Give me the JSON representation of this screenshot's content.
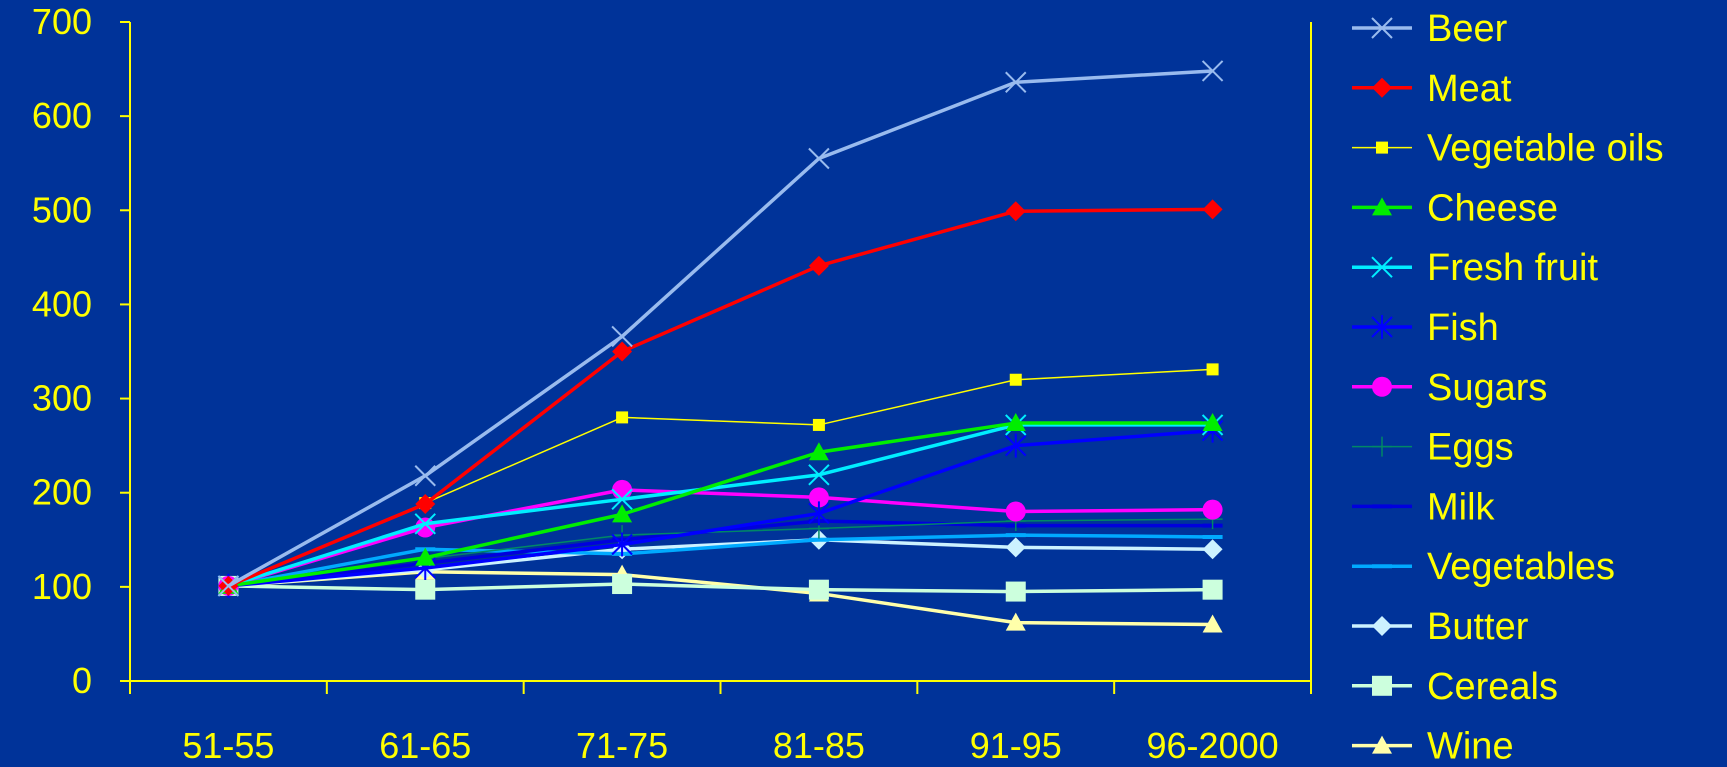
{
  "chart_data": {
    "type": "line",
    "title": "",
    "xlabel": "",
    "ylabel": "",
    "categories": [
      "51-55",
      "61-65",
      "71-75",
      "81-85",
      "91-95",
      "96-2000"
    ],
    "y_ticks": [
      "0",
      "100",
      "200",
      "300",
      "400",
      "500",
      "600",
      "700"
    ],
    "ylim": [
      0,
      700
    ],
    "grid": false,
    "legend_position": "right",
    "colors": {
      "background": "#003399",
      "axis": "#ffff00",
      "text": "#ffff00"
    },
    "series": [
      {
        "name": "Beer",
        "color": "#99bbee",
        "marker": "x",
        "width": 3.5,
        "values": [
          101,
          218,
          366,
          555,
          636,
          648
        ]
      },
      {
        "name": "Meat",
        "color": "#ff0000",
        "marker": "diamond",
        "width": 3.5,
        "values": [
          101,
          188,
          350,
          441,
          499,
          501
        ]
      },
      {
        "name": "Vegetable oils",
        "color": "#ffff00",
        "marker": "square-small",
        "width": 1.5,
        "values": [
          101,
          189,
          280,
          272,
          320,
          331
        ]
      },
      {
        "name": "Cheese",
        "color": "#00ee00",
        "marker": "triangle",
        "width": 3.5,
        "values": [
          101,
          131,
          177,
          243,
          274,
          274
        ]
      },
      {
        "name": "Fresh fruit",
        "color": "#00eeff",
        "marker": "x",
        "width": 3.5,
        "values": [
          101,
          167,
          193,
          219,
          272,
          272
        ]
      },
      {
        "name": "Fish",
        "color": "#0000ff",
        "marker": "star",
        "width": 3.5,
        "values": [
          101,
          120,
          145,
          178,
          250,
          266
        ]
      },
      {
        "name": "Sugars",
        "color": "#ff00ff",
        "marker": "circle",
        "width": 3.5,
        "values": [
          101,
          163,
          203,
          195,
          180,
          182
        ]
      },
      {
        "name": "Eggs",
        "color": "#008866",
        "marker": "plus",
        "width": 1.5,
        "values": [
          101,
          130,
          155,
          162,
          170,
          172
        ]
      },
      {
        "name": "Milk",
        "color": "#0000dd",
        "marker": "dash",
        "width": 3.5,
        "values": [
          101,
          125,
          150,
          170,
          165,
          165
        ]
      },
      {
        "name": "Vegetables",
        "color": "#00aaff",
        "marker": "dash",
        "width": 3.5,
        "values": [
          101,
          140,
          135,
          150,
          155,
          153
        ]
      },
      {
        "name": "Butter",
        "color": "#ccf2ff",
        "marker": "diamond",
        "width": 3.5,
        "values": [
          101,
          118,
          140,
          150,
          142,
          140
        ]
      },
      {
        "name": "Cereals",
        "color": "#ccffdd",
        "marker": "square",
        "width": 3.5,
        "values": [
          101,
          97,
          103,
          97,
          95,
          97
        ]
      },
      {
        "name": "Wine",
        "color": "#ffffaa",
        "marker": "triangle",
        "width": 3.5,
        "values": [
          101,
          116,
          113,
          93,
          62,
          60
        ]
      }
    ]
  }
}
